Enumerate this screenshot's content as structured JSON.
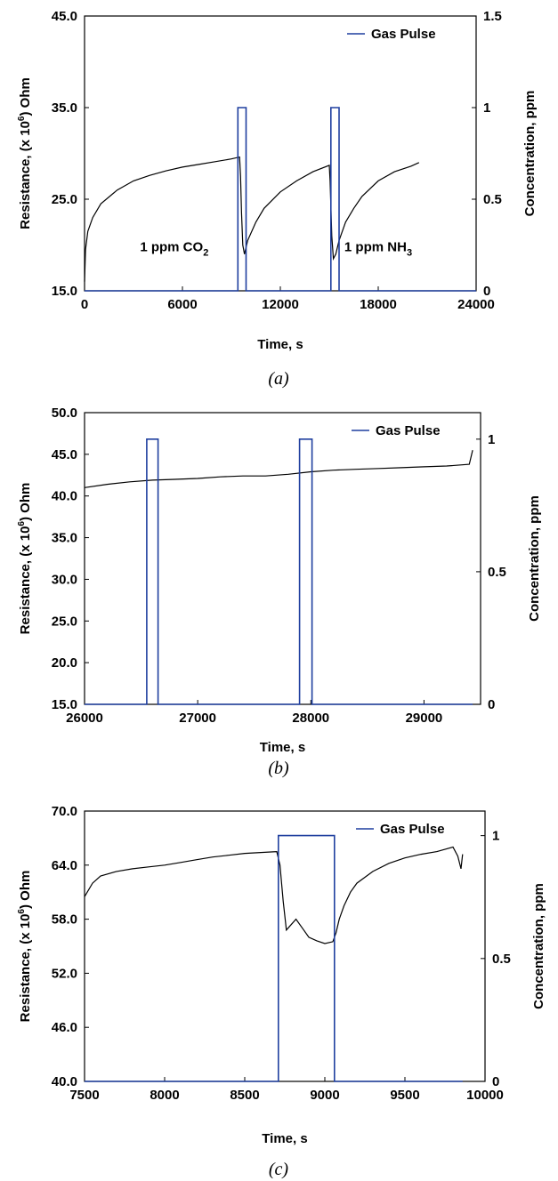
{
  "chart_data": [
    {
      "type": "line",
      "caption": "(a)",
      "xlabel": "Time, s",
      "ylabel_parts": [
        "Resistance, (x 10",
        "6",
        ") Ohm"
      ],
      "y2label": "Concentration, ppm",
      "xlim": [
        0,
        24000
      ],
      "ylim": [
        15.0,
        45.0
      ],
      "y2lim": [
        0,
        1.5
      ],
      "xticks": [
        "0",
        "6000",
        "12000",
        "18000",
        "24000"
      ],
      "yticks": [
        "15.0",
        "25.0",
        "35.0",
        "45.0"
      ],
      "y2ticks": [
        "0",
        "0.5",
        "1",
        "1.5"
      ],
      "legend": {
        "label": "Gas Pulse",
        "position": "top-right"
      },
      "annotations": [
        {
          "text": "1 ppm CO",
          "sub": "2",
          "x": 5500,
          "y": 19.3
        },
        {
          "text": "1 ppm NH",
          "sub": "3",
          "x": 18000,
          "y": 19.3
        }
      ],
      "series": [
        {
          "name": "",
          "axis": "left",
          "color": "#000000",
          "x": [
            0,
            60,
            200,
            500,
            1000,
            2000,
            3000,
            4000,
            5000,
            6000,
            7000,
            8000,
            9000,
            9500,
            9560,
            9620,
            9700,
            9800,
            10000,
            10500,
            11000,
            12000,
            13000,
            14000,
            15000,
            15050,
            15150,
            15250,
            15400,
            15600,
            16000,
            16500,
            17000,
            18000,
            19000,
            20000,
            20500
          ],
          "y": [
            16.0,
            19.5,
            21.5,
            23.0,
            24.5,
            26.0,
            27.0,
            27.6,
            28.1,
            28.5,
            28.8,
            29.1,
            29.4,
            29.6,
            27.5,
            23.5,
            20.0,
            19.0,
            20.5,
            22.5,
            24.0,
            25.8,
            27.0,
            28.0,
            28.7,
            27.0,
            21.0,
            18.5,
            19.0,
            20.5,
            22.5,
            24.0,
            25.3,
            27.0,
            28.0,
            28.6,
            29.0
          ]
        },
        {
          "name": "Gas Pulse",
          "axis": "right",
          "color": "#1f3f9f",
          "x": [
            0,
            9400,
            9400,
            9900,
            9900,
            15100,
            15100,
            15600,
            15600,
            24000
          ],
          "y": [
            0,
            0,
            1,
            1,
            0,
            0,
            1,
            1,
            0,
            0
          ]
        }
      ]
    },
    {
      "type": "line",
      "caption": "(b)",
      "xlabel": "Time, s",
      "ylabel_parts": [
        "Resistance, (x 10",
        "6",
        ") Ohm"
      ],
      "y2label": "Concentration, ppm",
      "xlim": [
        26000,
        29500
      ],
      "ylim": [
        15.0,
        50.0
      ],
      "y2lim": [
        0,
        1.1
      ],
      "xticks": [
        "26000",
        "27000",
        "28000",
        "29000"
      ],
      "yticks": [
        "15.0",
        "20.0",
        "25.0",
        "30.0",
        "35.0",
        "40.0",
        "45.0",
        "50.0"
      ],
      "y2ticks": [
        "0",
        "0.5",
        "1"
      ],
      "legend": {
        "label": "Gas Pulse",
        "position": "top-right"
      },
      "annotations": [],
      "series": [
        {
          "name": "",
          "axis": "left",
          "color": "#000000",
          "x": [
            26000,
            26200,
            26400,
            26600,
            26800,
            27000,
            27200,
            27400,
            27600,
            27800,
            28000,
            28200,
            28400,
            28600,
            28800,
            29000,
            29200,
            29400,
            29430
          ],
          "y": [
            41.0,
            41.4,
            41.7,
            41.9,
            42.0,
            42.1,
            42.3,
            42.4,
            42.4,
            42.6,
            42.9,
            43.1,
            43.2,
            43.3,
            43.4,
            43.5,
            43.6,
            43.8,
            45.5
          ]
        },
        {
          "name": "Gas Pulse",
          "axis": "right",
          "color": "#1f3f9f",
          "x": [
            26000,
            26550,
            26550,
            26650,
            26650,
            27900,
            27900,
            28010,
            28010,
            29430
          ],
          "y": [
            0,
            0,
            1,
            1,
            0,
            0,
            1,
            1,
            0,
            0
          ]
        }
      ]
    },
    {
      "type": "line",
      "caption": "(c)",
      "xlabel": "Time, s",
      "ylabel_parts": [
        "Resistance, (x 10",
        "6",
        ") Ohm"
      ],
      "y2label": "Concentration, ppm",
      "xlim": [
        7500,
        10000
      ],
      "ylim": [
        40.0,
        70.0
      ],
      "y2lim": [
        0,
        1.1
      ],
      "xticks": [
        "7500",
        "8000",
        "8500",
        "9000",
        "9500",
        "10000"
      ],
      "yticks": [
        "40.0",
        "46.0",
        "52.0",
        "58.0",
        "64.0",
        "70.0"
      ],
      "y2ticks": [
        "0",
        "0.5",
        "1"
      ],
      "legend": {
        "label": "Gas Pulse",
        "position": "top-right"
      },
      "annotations": [],
      "series": [
        {
          "name": "",
          "axis": "left",
          "color": "#000000",
          "x": [
            7500,
            7550,
            7600,
            7700,
            7800,
            7900,
            8000,
            8100,
            8200,
            8300,
            8400,
            8500,
            8600,
            8700,
            8720,
            8740,
            8760,
            8780,
            8820,
            8860,
            8900,
            8950,
            9000,
            9050,
            9070,
            9090,
            9120,
            9160,
            9200,
            9300,
            9400,
            9500,
            9600,
            9700,
            9800,
            9830,
            9850,
            9860
          ],
          "y": [
            60.5,
            62.0,
            62.8,
            63.3,
            63.6,
            63.8,
            64.0,
            64.3,
            64.6,
            64.9,
            65.1,
            65.3,
            65.4,
            65.5,
            64.0,
            60.0,
            56.8,
            57.2,
            58.0,
            57.0,
            56.0,
            55.6,
            55.3,
            55.5,
            56.5,
            58.0,
            59.5,
            61.0,
            62.0,
            63.3,
            64.2,
            64.8,
            65.2,
            65.5,
            66.0,
            65.0,
            63.6,
            65.2
          ]
        },
        {
          "name": "Gas Pulse",
          "axis": "right",
          "color": "#1f3f9f",
          "x": [
            7500,
            8710,
            8710,
            9060,
            9060,
            9860
          ],
          "y": [
            0,
            0,
            1,
            1,
            0,
            0
          ]
        }
      ]
    }
  ]
}
